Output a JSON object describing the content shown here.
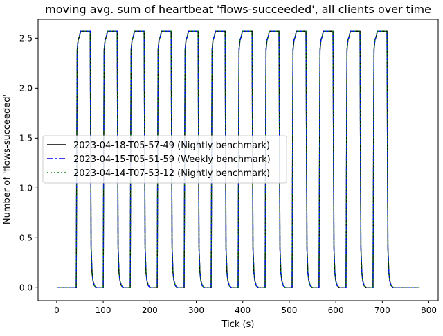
{
  "chart_data": {
    "type": "line",
    "title": "moving avg. sum of heartbeat 'flows-succeeded', all clients over time",
    "xlabel": "Tick (s)",
    "ylabel": "Number of 'flows-succeeded'",
    "xlim": [
      -40,
      820
    ],
    "ylim": [
      -0.13,
      2.69
    ],
    "xticks": [
      0,
      100,
      200,
      300,
      400,
      500,
      600,
      700,
      800
    ],
    "xtick_labels": [
      "0",
      "100",
      "200",
      "300",
      "400",
      "500",
      "600",
      "700",
      "800"
    ],
    "yticks": [
      0.0,
      0.5,
      1.0,
      1.5,
      2.0,
      2.5
    ],
    "ytick_labels": [
      "0.0",
      "0.5",
      "1.0",
      "1.5",
      "2.0",
      "2.5"
    ],
    "grid": false,
    "legend_position": "center-left",
    "cycle": {
      "first_rise_at": 42,
      "period": 58,
      "count": 12,
      "high_value": 2.57,
      "end_x": 780,
      "profile": [
        [
          0,
          0.0
        ],
        [
          2,
          2.38
        ],
        [
          4,
          2.48
        ],
        [
          7,
          2.52
        ],
        [
          9,
          2.57
        ],
        [
          30,
          2.57
        ],
        [
          32,
          0.4
        ],
        [
          34,
          0.15
        ],
        [
          36,
          0.07
        ],
        [
          39,
          0.02
        ],
        [
          44,
          0.0
        ]
      ]
    },
    "series": [
      {
        "name": "2023-04-18-T05-57-49 (Nightly benchmark)",
        "color": "#000000",
        "style": "solid"
      },
      {
        "name": "2023-04-15-T05-51-59 (Weekly benchmark)",
        "color": "#0000ff",
        "style": "dashdot"
      },
      {
        "name": "2023-04-14-T07-53-12 (Nightly benchmark)",
        "color": "#008000",
        "style": "dotted"
      }
    ]
  }
}
